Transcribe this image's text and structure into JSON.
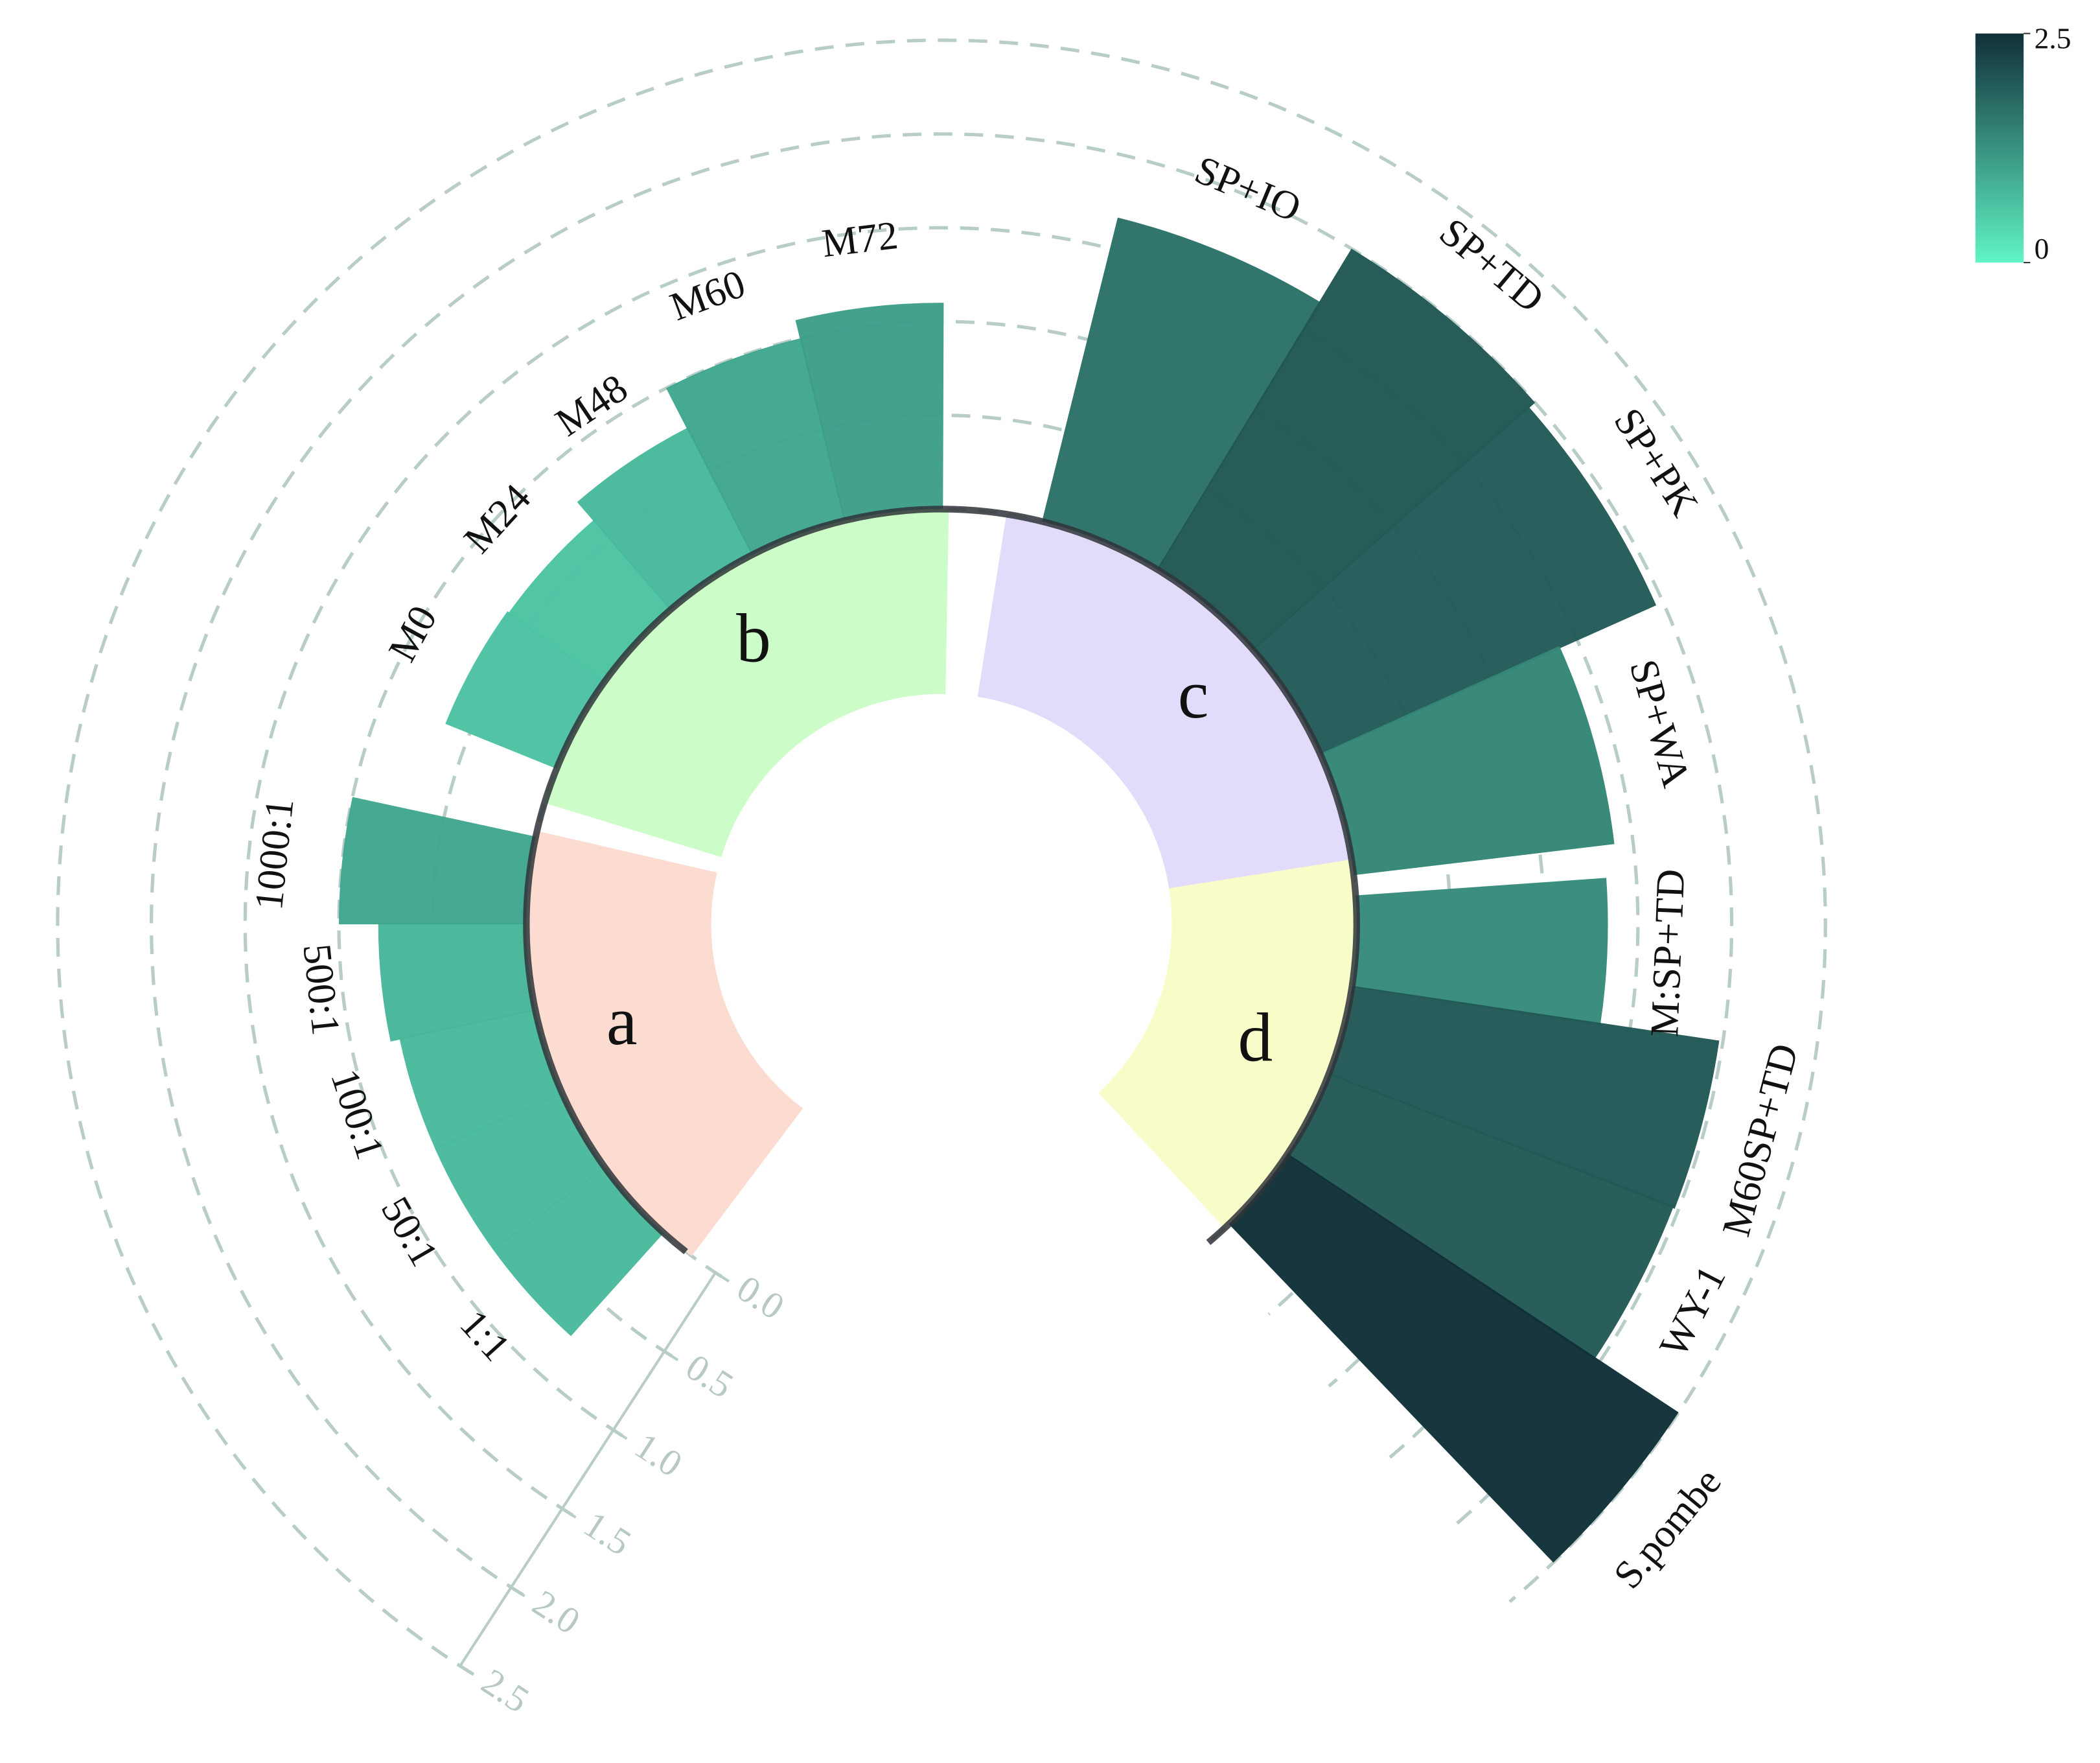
{
  "chart_data": {
    "type": "radial-bar",
    "rlim": [
      0,
      2.5
    ],
    "rticks": [
      {
        "value": 0,
        "label": "0.0"
      },
      0.5,
      {
        "value": 1,
        "label": "1.0"
      },
      1.5,
      {
        "value": 2,
        "label": "2.0"
      },
      2.5
    ],
    "grid": true,
    "colorscale": [
      "#60f5c6",
      "#112f38"
    ],
    "colorbar": {
      "range": [
        0,
        2.5
      ],
      "ticks": [
        0,
        2.5
      ]
    },
    "groups": [
      {
        "label": "a",
        "color": "#fcdcd0",
        "categories": [
          "1:1",
          "50:1",
          "100:1",
          "500:1",
          "1000:1"
        ],
        "values": [
          0.74,
          0.74,
          0.74,
          0.79,
          1.0
        ]
      },
      {
        "label": "b",
        "color": "#ccfcc8",
        "categories": [
          "M0",
          "M24",
          "M48",
          "M60",
          "M72"
        ],
        "values": [
          0.64,
          0.63,
          0.76,
          1.0,
          1.1
        ]
      },
      {
        "label": "c",
        "color": "#e2dcfa",
        "categories": [
          "SP+IO",
          "SP+TD",
          "SP+PK",
          "SP+WA"
        ],
        "values": [
          1.67,
          2.0,
          1.96,
          1.4
        ]
      },
      {
        "label": "d",
        "color": "#f8fcc8",
        "categories": [
          "M:SP+TD",
          "M60SP+TD",
          "WY-1",
          "S.pombe"
        ],
        "values": [
          1.34,
          1.98,
          1.97,
          2.5
        ]
      }
    ]
  }
}
